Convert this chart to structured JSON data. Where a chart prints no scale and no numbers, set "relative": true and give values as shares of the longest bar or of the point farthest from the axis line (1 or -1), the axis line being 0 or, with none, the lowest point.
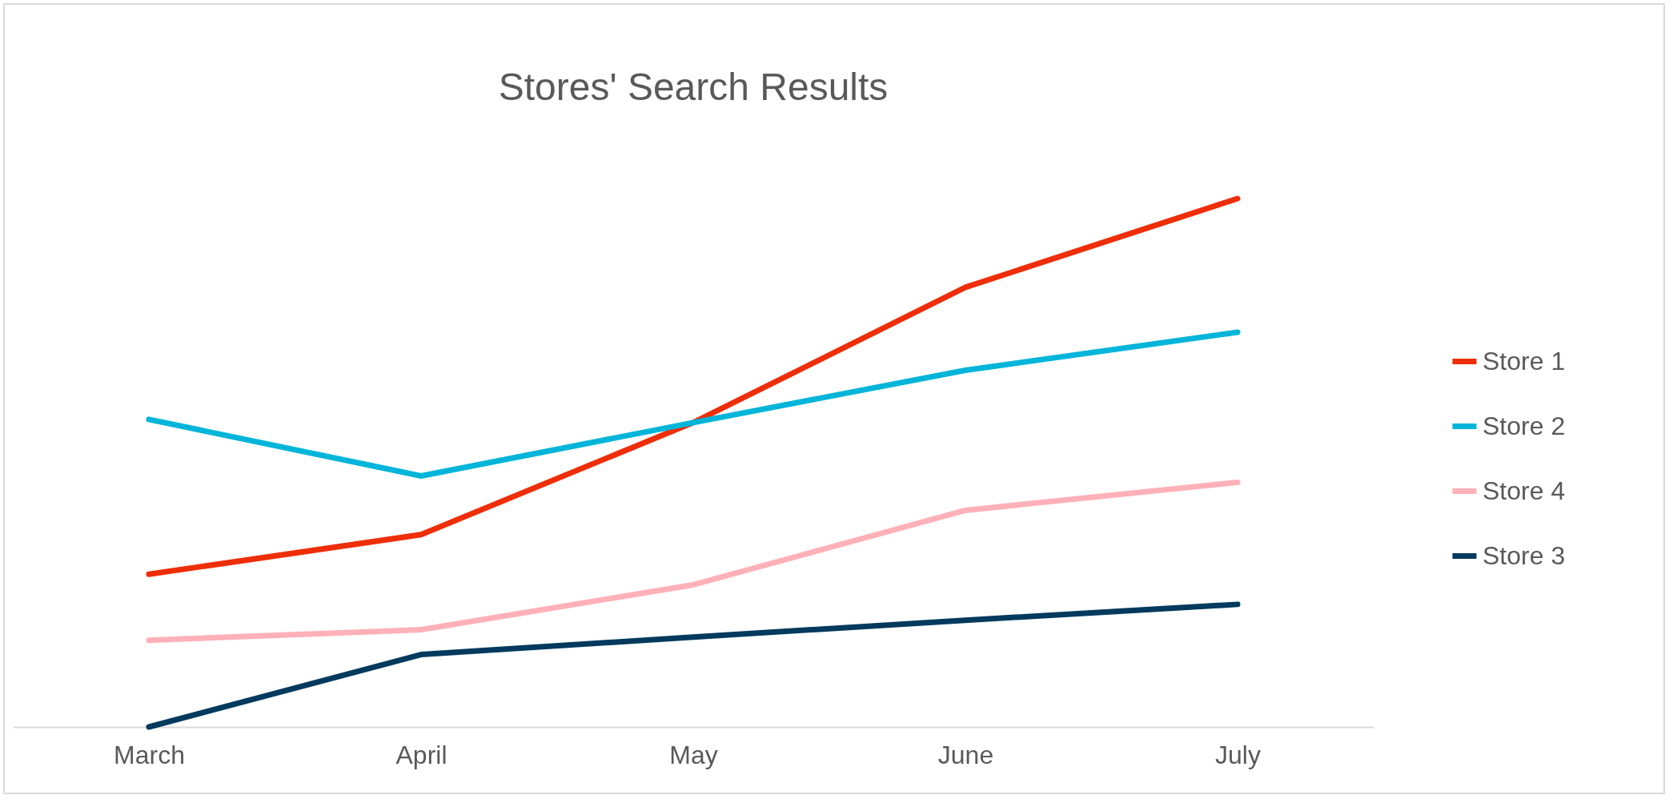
{
  "chart_data": {
    "type": "line",
    "title": "Stores' Search Results",
    "relative": true,
    "categories": [
      "March",
      "April",
      "May",
      "June",
      "July"
    ],
    "series": [
      {
        "name": "Store 1",
        "color": "#ee2e08",
        "values": [
          0.289,
          0.364,
          0.576,
          0.832,
          1
        ]
      },
      {
        "name": "Store 2",
        "color": "#00b5d9",
        "values": [
          0.582,
          0.475,
          0.576,
          0.675,
          0.747
        ]
      },
      {
        "name": "Store 4",
        "color": "#ffb0b8",
        "values": [
          0.164,
          0.184,
          0.269,
          0.41,
          0.463
        ]
      },
      {
        "name": "Store 3",
        "color": "#023a5e",
        "values": [
          0,
          0.137,
          0.17,
          0.202,
          0.232
        ]
      }
    ],
    "legend": "right",
    "grid": false,
    "marker": "none",
    "line_style": "solid"
  }
}
